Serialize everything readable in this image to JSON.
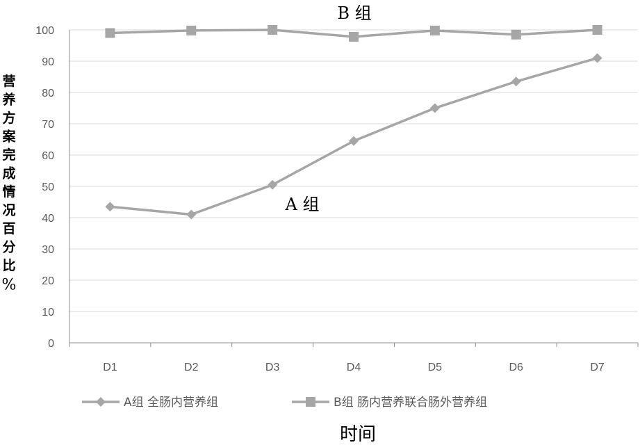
{
  "chart_data": {
    "type": "line",
    "categories": [
      "D1",
      "D2",
      "D3",
      "D4",
      "D5",
      "D6",
      "D7"
    ],
    "series": [
      {
        "name": "A组 全肠内营养组",
        "marker": "diamond",
        "color": "#a6a6a6",
        "values": [
          43.5,
          41,
          50.5,
          64.5,
          75,
          83.5,
          91
        ]
      },
      {
        "name": "B组 肠内营养联合肠外营养组",
        "marker": "square",
        "color": "#a6a6a6",
        "values": [
          99,
          99.8,
          100,
          97.8,
          99.8,
          98.5,
          100
        ]
      }
    ],
    "ylim": [
      0,
      100
    ],
    "yticks": [
      0,
      10,
      20,
      30,
      40,
      50,
      60,
      70,
      80,
      90,
      100
    ],
    "xlabel": "时间",
    "ylabel": "营养方案完成情况百分比%",
    "grid": true,
    "legend_position": "bottom",
    "annotations": [
      {
        "text": "B 组",
        "series": 1
      },
      {
        "text": "A 组",
        "series": 0
      }
    ]
  }
}
